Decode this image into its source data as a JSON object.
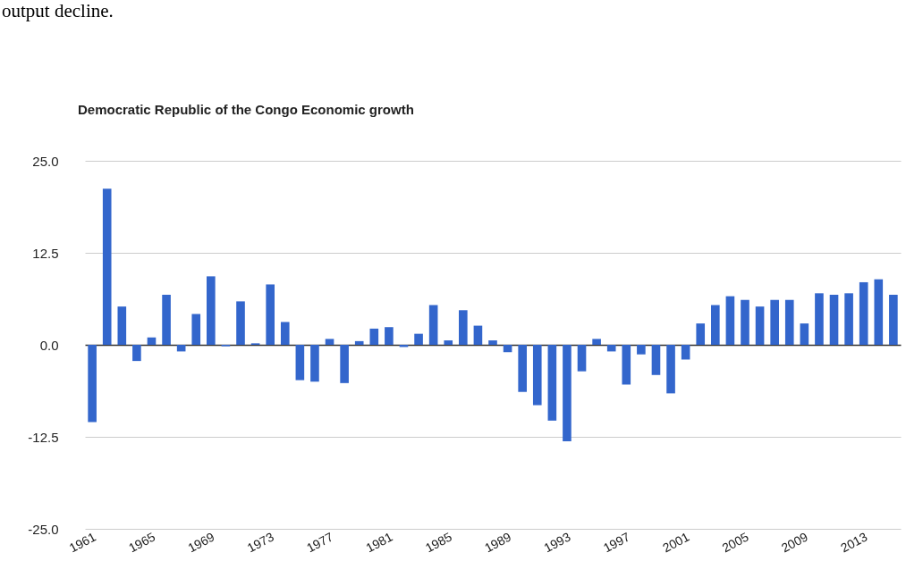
{
  "chart_data": {
    "type": "bar",
    "title": "Democratic Republic of the Congo Economic growth",
    "annotations": [
      "output decline."
    ],
    "categories": [
      "1961",
      null,
      null,
      null,
      "1965",
      null,
      null,
      null,
      "1969",
      null,
      null,
      null,
      "1973",
      null,
      null,
      null,
      "1977",
      null,
      null,
      null,
      "1981",
      null,
      null,
      null,
      "1985",
      null,
      null,
      null,
      "1989",
      null,
      null,
      null,
      "1993",
      null,
      null,
      null,
      "1997",
      null,
      null,
      null,
      "2001",
      null,
      null,
      null,
      "2005",
      null,
      null,
      null,
      "2009",
      null,
      null,
      null,
      "2013",
      null,
      null
    ],
    "values": [
      -10.5,
      21.2,
      5.2,
      -2.2,
      1.0,
      6.8,
      -0.9,
      4.2,
      9.3,
      -0.2,
      5.9,
      0.2,
      8.2,
      3.1,
      -4.8,
      -5.0,
      0.8,
      -5.2,
      0.5,
      2.2,
      2.4,
      -0.3,
      1.5,
      5.4,
      0.6,
      4.7,
      2.6,
      0.6,
      -1.0,
      -6.4,
      -8.2,
      -10.3,
      -13.1,
      -3.6,
      0.8,
      -0.9,
      -5.4,
      -1.3,
      -4.1,
      -6.6,
      -2.0,
      2.9,
      5.4,
      6.6,
      6.1,
      5.2,
      6.1,
      6.1,
      2.9,
      7.0,
      6.8,
      7.0,
      8.5,
      8.9,
      6.8
    ],
    "color": "#3366cc",
    "ylim": [
      -25,
      25
    ],
    "yticks": [
      {
        "value": -25,
        "label": "-25.0"
      },
      {
        "value": -12.5,
        "label": "-12.5"
      },
      {
        "value": 0,
        "label": "0.0"
      },
      {
        "value": 12.5,
        "label": "12.5"
      },
      {
        "value": 25,
        "label": "25.0"
      }
    ],
    "grid": "y"
  }
}
